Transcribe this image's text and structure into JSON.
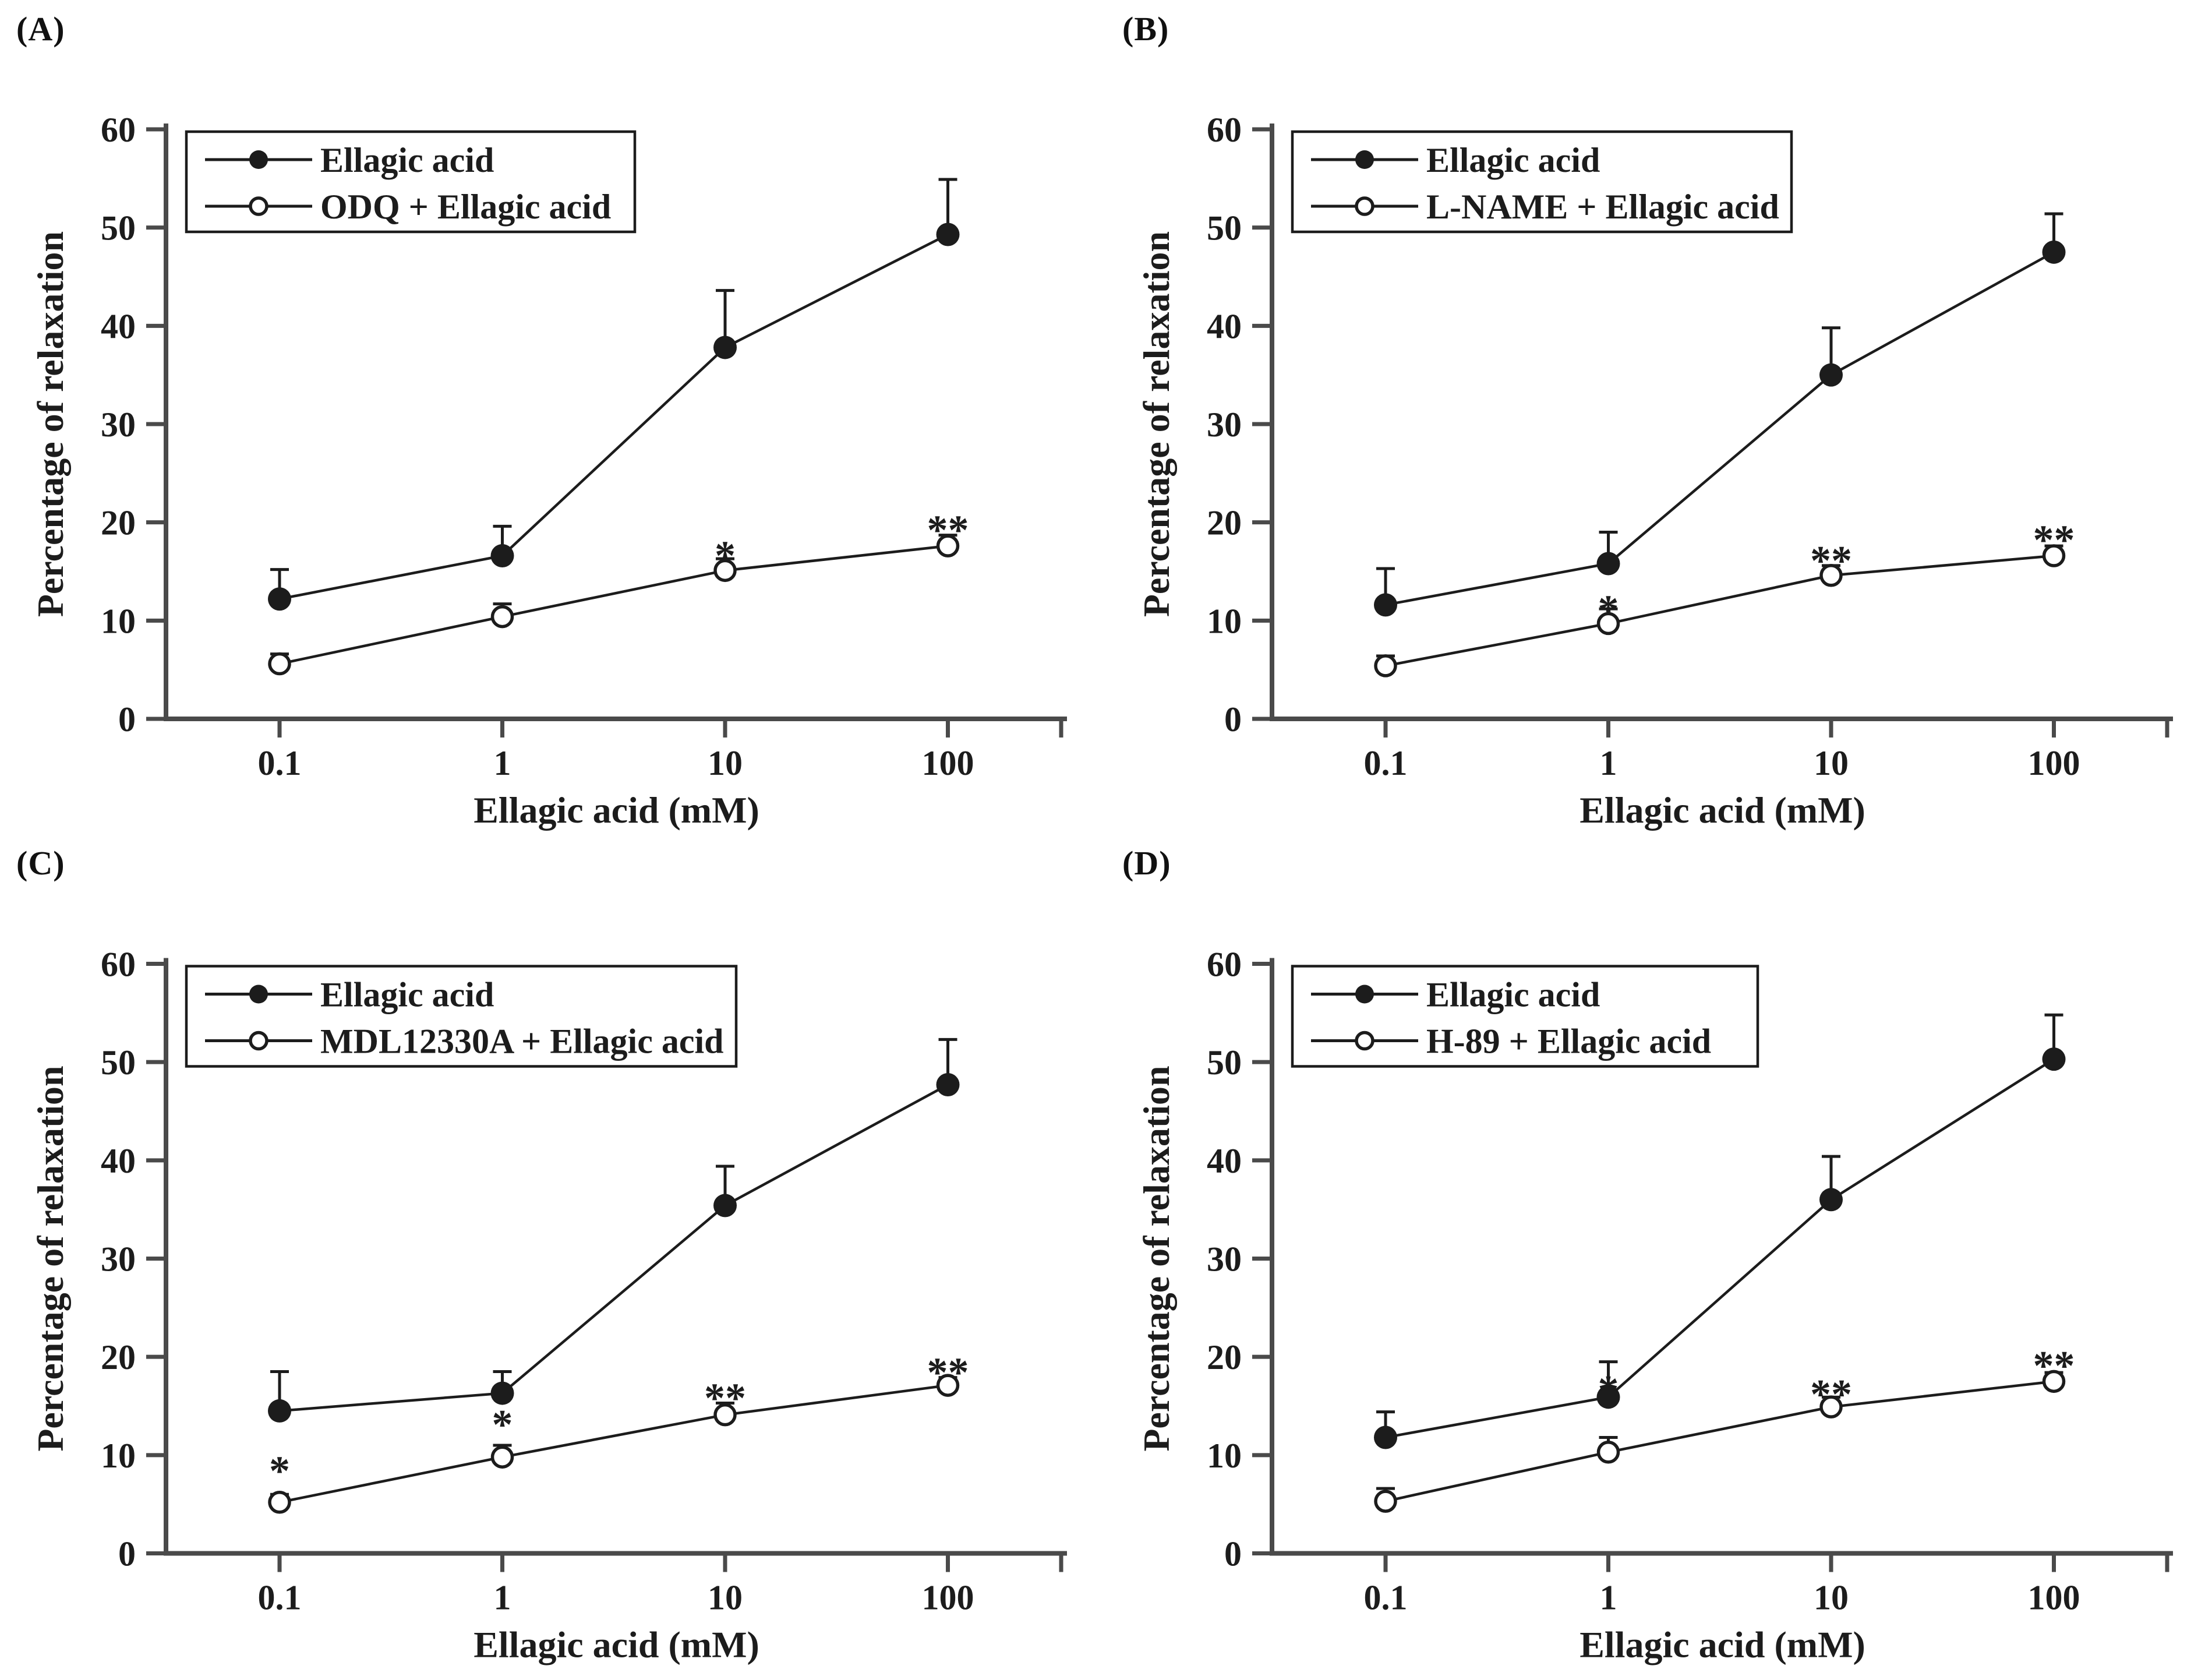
{
  "figure": {
    "background": "#ffffff",
    "ink": "#1c1c1c",
    "axis_color": "#4a4a4a"
  },
  "chart_data": [
    {
      "panel": "(A)",
      "type": "line",
      "xlabel": "Ellagic acid (mM)",
      "ylabel": "Percentage of relaxation",
      "x_categories": [
        "0.1",
        "1",
        "10",
        "100"
      ],
      "x_scale": "log-categorical",
      "ylim": [
        0,
        60
      ],
      "yticks": [
        0,
        10,
        20,
        30,
        40,
        50,
        60
      ],
      "grid": false,
      "legend_position": "top-left",
      "series": [
        {
          "name": "Ellagic acid",
          "marker": "filled-circle",
          "values": [
            12.2,
            16.6,
            37.8,
            49.3
          ],
          "errors_plus": [
            3.0,
            3.0,
            5.8,
            5.6
          ]
        },
        {
          "name": "ODQ + Ellagic acid",
          "marker": "open-circle",
          "values": [
            5.6,
            10.4,
            15.1,
            17.6
          ],
          "errors_plus": [
            1.0,
            1.3,
            1.2,
            1.1
          ]
        }
      ],
      "annotations": [
        {
          "text": "*",
          "x_index": 2,
          "y": 17.9
        },
        {
          "text": "**",
          "x_index": 3,
          "y": 20.5
        }
      ]
    },
    {
      "panel": "(B)",
      "type": "line",
      "xlabel": "Ellagic acid (mM)",
      "ylabel": "Percentage of relaxation",
      "x_categories": [
        "0.1",
        "1",
        "10",
        "100"
      ],
      "x_scale": "log-categorical",
      "ylim": [
        0,
        60
      ],
      "yticks": [
        0,
        10,
        20,
        30,
        40,
        50,
        60
      ],
      "grid": false,
      "legend_position": "top-left",
      "series": [
        {
          "name": "Ellagic acid",
          "marker": "filled-circle",
          "values": [
            11.6,
            15.8,
            35.0,
            47.5
          ],
          "errors_plus": [
            3.7,
            3.2,
            4.8,
            3.9
          ]
        },
        {
          "name": "L-NAME + Ellagic acid",
          "marker": "open-circle",
          "values": [
            5.4,
            9.7,
            14.6,
            16.6
          ],
          "errors_plus": [
            1.0,
            1.5,
            1.0,
            1.0
          ]
        }
      ],
      "annotations": [
        {
          "text": "*",
          "x_index": 1,
          "y": 12.4
        },
        {
          "text": "**",
          "x_index": 2,
          "y": 17.4
        },
        {
          "text": "**",
          "x_index": 3,
          "y": 19.5
        }
      ]
    },
    {
      "panel": "(C)",
      "type": "line",
      "xlabel": "Ellagic acid (mM)",
      "ylabel": "Percentage of relaxation",
      "x_categories": [
        "0.1",
        "1",
        "10",
        "100"
      ],
      "x_scale": "log-categorical",
      "ylim": [
        0,
        60
      ],
      "yticks": [
        0,
        10,
        20,
        30,
        40,
        50,
        60
      ],
      "grid": false,
      "legend_position": "top-left",
      "series": [
        {
          "name": "Ellagic acid",
          "marker": "filled-circle",
          "values": [
            14.5,
            16.3,
            35.4,
            47.7
          ],
          "errors_plus": [
            4.0,
            2.2,
            4.0,
            4.6
          ]
        },
        {
          "name": "MDL12330A + Ellagic acid",
          "marker": "open-circle",
          "values": [
            5.2,
            9.8,
            14.1,
            17.1
          ],
          "errors_plus": [
            0.8,
            1.2,
            1.2,
            0.8
          ]
        }
      ],
      "annotations": [
        {
          "text": "*",
          "x_index": 0,
          "y": 9.7
        },
        {
          "text": "*",
          "x_index": 1,
          "y": 14.4
        },
        {
          "text": "**",
          "x_index": 2,
          "y": 17.1
        },
        {
          "text": "**",
          "x_index": 3,
          "y": 19.7
        }
      ]
    },
    {
      "panel": "(D)",
      "type": "line",
      "xlabel": "Ellagic acid (mM)",
      "ylabel": "Percentage of relaxation",
      "x_categories": [
        "0.1",
        "1",
        "10",
        "100"
      ],
      "x_scale": "log-categorical",
      "ylim": [
        0,
        60
      ],
      "yticks": [
        0,
        10,
        20,
        30,
        40,
        50,
        60
      ],
      "grid": false,
      "legend_position": "top-left",
      "series": [
        {
          "name": "Ellagic acid",
          "marker": "filled-circle",
          "values": [
            11.8,
            15.9,
            36.0,
            50.3
          ],
          "errors_plus": [
            2.6,
            3.6,
            4.4,
            4.5
          ]
        },
        {
          "name": "H-89 + Ellagic acid",
          "marker": "open-circle",
          "values": [
            5.3,
            10.3,
            14.9,
            17.5
          ],
          "errors_plus": [
            1.3,
            1.5,
            1.0,
            0.9
          ]
        }
      ],
      "annotations": [
        {
          "text": "*",
          "x_index": 1,
          "y": 17.9
        },
        {
          "text": "**",
          "x_index": 2,
          "y": 17.5
        },
        {
          "text": "**",
          "x_index": 3,
          "y": 20.4
        }
      ]
    }
  ]
}
